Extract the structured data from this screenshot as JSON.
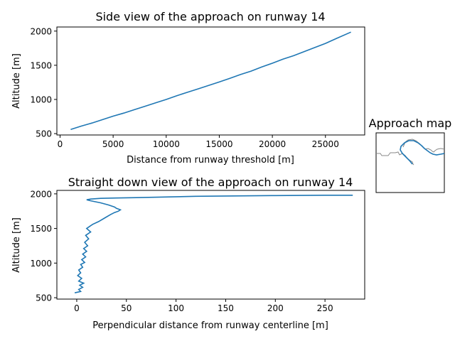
{
  "chart_data": [
    {
      "type": "line",
      "title": "Side view of the approach on runway 14",
      "xlabel": "Distance from runway threshold [m]",
      "ylabel": "Altitude [m]",
      "xlim": [
        -300,
        28700
      ],
      "ylim": [
        480,
        2060
      ],
      "xticks": [
        0,
        5000,
        10000,
        15000,
        20000,
        25000
      ],
      "xtick_labels": [
        "0",
        "5000",
        "10000",
        "15000",
        "20000",
        "25000"
      ],
      "yticks": [
        500,
        1000,
        1500,
        2000
      ],
      "ytick_labels": [
        "500",
        "1000",
        "1500",
        "2000"
      ],
      "grid": false,
      "color": "#1f77b4",
      "x": [
        1000,
        2000,
        3000,
        4000,
        5000,
        6000,
        7000,
        8000,
        9000,
        10000,
        11000,
        12000,
        13000,
        14000,
        15000,
        16000,
        17000,
        18000,
        19000,
        20000,
        21000,
        22000,
        23000,
        24000,
        25000,
        26000,
        27400
      ],
      "y": [
        560,
        610,
        655,
        705,
        755,
        800,
        850,
        900,
        950,
        1000,
        1055,
        1105,
        1155,
        1205,
        1255,
        1310,
        1365,
        1415,
        1475,
        1530,
        1590,
        1640,
        1700,
        1760,
        1820,
        1890,
        1985
      ]
    },
    {
      "type": "line",
      "title": "Straight down view of the approach on runway 14",
      "xlabel": "Perpendicular distance from runway centerline [m]",
      "ylabel": "Altitude [m]",
      "xlim": [
        -20,
        290
      ],
      "ylim": [
        480,
        2050
      ],
      "xticks": [
        0,
        50,
        100,
        150,
        200,
        250
      ],
      "xtick_labels": [
        "0",
        "50",
        "100",
        "150",
        "200",
        "250"
      ],
      "yticks": [
        500,
        1000,
        1500,
        2000
      ],
      "ytick_labels": [
        "500",
        "1000",
        "1500",
        "2000"
      ],
      "grid": false,
      "color": "#1f77b4",
      "x": [
        -2,
        4,
        2,
        6,
        3,
        7,
        2,
        5,
        1,
        4,
        2,
        6,
        4,
        8,
        5,
        9,
        6,
        10,
        7,
        11,
        8,
        12,
        9,
        14,
        10,
        16,
        22,
        28,
        34,
        38,
        42,
        44,
        40,
        38,
        32,
        24,
        14,
        10,
        14,
        24,
        40,
        60,
        120,
        200,
        250,
        278
      ],
      "y": [
        570,
        590,
        620,
        650,
        680,
        710,
        740,
        780,
        820,
        860,
        900,
        940,
        980,
        1010,
        1050,
        1090,
        1130,
        1170,
        1210,
        1250,
        1300,
        1350,
        1400,
        1450,
        1500,
        1560,
        1600,
        1650,
        1700,
        1730,
        1750,
        1770,
        1790,
        1810,
        1840,
        1870,
        1900,
        1915,
        1925,
        1935,
        1940,
        1945,
        1965,
        1975,
        1980,
        1980
      ]
    }
  ],
  "map": {
    "title": "Approach map",
    "track_color": "#1f77b4",
    "coast_color": "#888888"
  }
}
